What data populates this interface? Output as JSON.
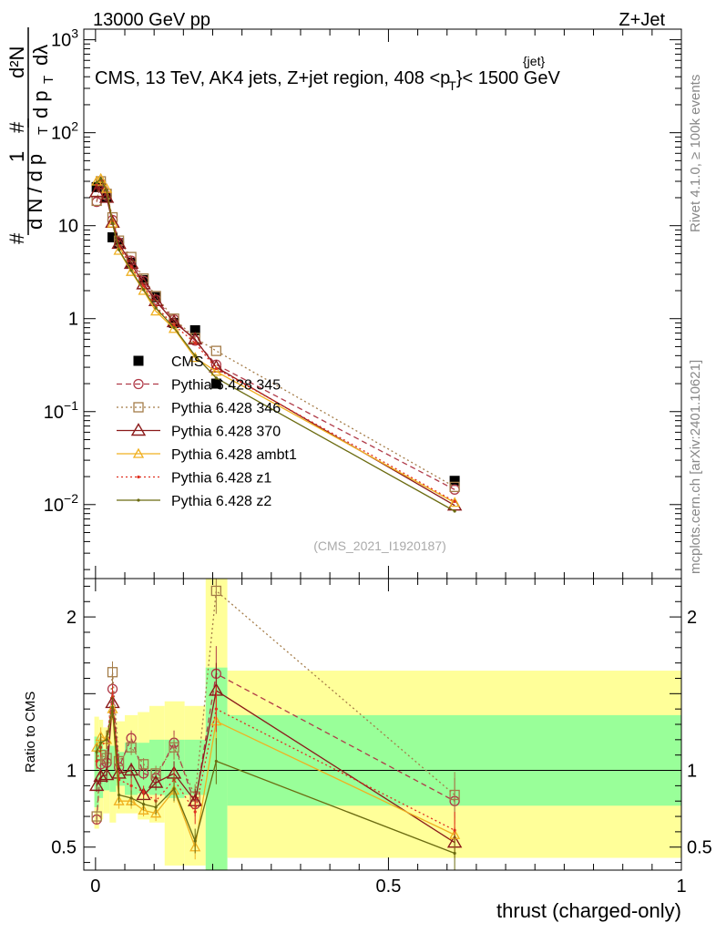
{
  "header": {
    "left": "13000 GeV pp",
    "right": "Z+Jet"
  },
  "side_labels": {
    "rivet": "Rivet 4.1.0, ≥ 100k events",
    "source": "mcplots.cern.ch [arXiv:2401.10621]"
  },
  "watermark": "(CMS_2021_I1920187)",
  "chart_data": [
    {
      "type": "line",
      "panel": "main",
      "title": "CMS, 13 TeV, AK4 jets, Z+jet region, 408 <p_T^{jet}< 1500 GeV",
      "title_parts": {
        "prefix": "CMS, 13 TeV, AK4 jets, Z+jet region, 408 <p",
        "sup": "{jet}",
        "sub": "T",
        "suffix": "}< 1500 GeV"
      },
      "ylabel": "1/dN/dp_T d²N/dp_T dλ",
      "ylabel_parts": {
        "one": "1",
        "hash": "#",
        "dN": "d N / d p",
        "sub": "T",
        "dtwoN": "d²N",
        "dpt": "d p",
        "dlambda": "dλ"
      },
      "yscale": "log",
      "ylim": [
        0.0016,
        1300
      ],
      "xlim": [
        -0.02,
        1.0
      ],
      "y_ticks": [
        {
          "value": 0.01,
          "base": "10",
          "exp": "−2"
        },
        {
          "value": 0.1,
          "base": "10",
          "exp": "−1"
        },
        {
          "value": 1,
          "label": "1"
        },
        {
          "value": 10,
          "label": "10"
        },
        {
          "value": 100,
          "base": "10",
          "exp": "2"
        },
        {
          "value": 1000,
          "base": "10",
          "exp": "3"
        }
      ],
      "legend_position": "center-left",
      "x": [
        0.002,
        0.009,
        0.019,
        0.029,
        0.04,
        0.061,
        0.082,
        0.103,
        0.134,
        0.17,
        0.206,
        0.613
      ],
      "series": [
        {
          "name": "CMS",
          "marker": "square",
          "color": "#000000",
          "style": "none",
          "values": [
            26,
            27,
            20,
            7.5,
            6.5,
            4.0,
            2.6,
            1.7,
            0.9,
            0.75,
            0.2,
            0.018
          ]
        },
        {
          "name": "Pythia 6.428 345",
          "marker": "circle",
          "color": "#b03a48",
          "style": "dash",
          "values": [
            18,
            28,
            21,
            11.5,
            6.6,
            4.2,
            2.55,
            1.6,
            0.98,
            0.58,
            0.32,
            0.0145
          ]
        },
        {
          "name": "Pythia 6.428 346",
          "marker": "square-open",
          "color": "#a47c48",
          "style": "dot",
          "values": [
            18.5,
            30,
            22,
            12.3,
            6.9,
            4.6,
            2.7,
            1.75,
            1.0,
            0.62,
            0.45,
            0.0155
          ]
        },
        {
          "name": "Pythia 6.428 370",
          "marker": "triangle",
          "color": "#8b1a1a",
          "style": "solid",
          "values": [
            23,
            28,
            20,
            10.8,
            6.4,
            3.9,
            2.35,
            1.55,
            0.92,
            0.6,
            0.3,
            0.0098
          ]
        },
        {
          "name": "Pythia 6.428 ambt1",
          "marker": "triangle-small",
          "color": "#f0b020",
          "style": "solid",
          "values": [
            30,
            32,
            25,
            10.6,
            5.4,
            3.2,
            2.0,
            1.2,
            0.78,
            0.38,
            0.27,
            0.0105
          ]
        },
        {
          "name": "Pythia 6.428 z1",
          "marker": "dot",
          "color": "#e03020",
          "style": "dot",
          "values": [
            28,
            31,
            24,
            11.2,
            6.0,
            3.6,
            2.25,
            1.35,
            0.85,
            0.55,
            0.29,
            0.0108
          ]
        },
        {
          "name": "Pythia 6.428 z2",
          "marker": "dot",
          "color": "#6b6b10",
          "style": "solid",
          "values": [
            29,
            32,
            24,
            10.6,
            5.5,
            3.3,
            2.05,
            1.3,
            0.8,
            0.4,
            0.23,
            0.0085
          ]
        }
      ]
    },
    {
      "type": "line",
      "panel": "ratio",
      "ylabel": "Ratio to CMS",
      "xlabel": "thrust (charged-only)",
      "ylim": [
        0.35,
        2.25
      ],
      "xlim": [
        -0.02,
        1.0
      ],
      "y_ticks": [
        {
          "value": 0.5,
          "label": "0.5"
        },
        {
          "value": 1,
          "label": "1"
        },
        {
          "value": 2,
          "label": "2"
        }
      ],
      "x_ticks": [
        {
          "value": 0,
          "label": "0"
        },
        {
          "value": 0.5,
          "label": "0.5"
        },
        {
          "value": 1,
          "label": "1"
        }
      ],
      "bands": [
        {
          "x0": -0.002,
          "x1": 0.006,
          "green": [
            0.76,
            1.22
          ],
          "yellow": [
            0.62,
            1.35
          ]
        },
        {
          "x0": 0.006,
          "x1": 0.013,
          "green": [
            0.82,
            1.2
          ],
          "yellow": [
            0.68,
            1.33
          ]
        },
        {
          "x0": 0.013,
          "x1": 0.024,
          "green": [
            0.87,
            1.14
          ],
          "yellow": [
            0.72,
            1.28
          ]
        },
        {
          "x0": 0.024,
          "x1": 0.035,
          "green": [
            0.86,
            1.16
          ],
          "yellow": [
            0.66,
            1.36
          ]
        },
        {
          "x0": 0.035,
          "x1": 0.05,
          "green": [
            0.9,
            1.12
          ],
          "yellow": [
            0.72,
            1.32
          ]
        },
        {
          "x0": 0.05,
          "x1": 0.072,
          "green": [
            0.84,
            1.18
          ],
          "yellow": [
            0.72,
            1.36
          ]
        },
        {
          "x0": 0.072,
          "x1": 0.092,
          "green": [
            0.85,
            1.18
          ],
          "yellow": [
            0.68,
            1.38
          ]
        },
        {
          "x0": 0.092,
          "x1": 0.118,
          "green": [
            0.84,
            1.2
          ],
          "yellow": [
            0.66,
            1.42
          ]
        },
        {
          "x0": 0.118,
          "x1": 0.152,
          "green": [
            0.82,
            1.2
          ],
          "yellow": [
            0.38,
            1.45
          ]
        },
        {
          "x0": 0.152,
          "x1": 0.188,
          "green": [
            0.84,
            1.2
          ],
          "yellow": [
            0.38,
            1.42
          ]
        },
        {
          "x0": 0.188,
          "x1": 0.225,
          "green": [
            0.35,
            1.67
          ],
          "yellow": [
            0.35,
            2.25
          ]
        },
        {
          "x0": 0.225,
          "x1": 1.0,
          "green": [
            0.77,
            1.36
          ],
          "yellow": [
            0.43,
            1.65
          ]
        }
      ],
      "x": [
        0.002,
        0.009,
        0.019,
        0.029,
        0.04,
        0.061,
        0.082,
        0.103,
        0.134,
        0.17,
        0.206,
        0.613
      ],
      "series": [
        {
          "name": "Pythia 6.428 345",
          "marker": "circle",
          "color": "#b03a48",
          "style": "dash",
          "values": [
            0.68,
            1.04,
            1.05,
            1.53,
            1.02,
            1.21,
            0.98,
            0.95,
            1.18,
            0.78,
            1.63,
            0.8
          ],
          "errors": [
            0.03,
            0.05,
            0.05,
            0.07,
            0.05,
            0.05,
            0.04,
            0.05,
            0.08,
            0.08,
            0.18,
            0.15
          ]
        },
        {
          "name": "Pythia 6.428 346",
          "marker": "square-open",
          "color": "#a47c48",
          "style": "dot",
          "values": [
            0.7,
            1.1,
            1.08,
            1.64,
            1.06,
            1.15,
            1.04,
            0.98,
            1.15,
            0.83,
            2.17,
            0.84
          ],
          "errors": [
            0.03,
            0.05,
            0.05,
            0.07,
            0.05,
            0.05,
            0.04,
            0.05,
            0.08,
            0.08,
            0.15,
            0.15
          ]
        },
        {
          "name": "Pythia 6.428 370",
          "marker": "triangle",
          "color": "#8b1a1a",
          "style": "solid",
          "values": [
            0.9,
            0.96,
            0.97,
            1.44,
            0.98,
            1.0,
            0.84,
            0.92,
            0.98,
            0.8,
            1.52,
            0.53
          ],
          "errors": [
            0.04,
            0.05,
            0.05,
            0.07,
            0.05,
            0.05,
            0.04,
            0.05,
            0.08,
            0.08,
            0.18,
            0.1
          ]
        },
        {
          "name": "Pythia 6.428 ambt1",
          "marker": "triangle-small",
          "color": "#f0b020",
          "style": "solid",
          "values": [
            1.15,
            1.22,
            1.2,
            1.4,
            0.8,
            0.8,
            0.74,
            0.72,
            0.87,
            0.5,
            1.32,
            0.58
          ],
          "errors": [
            0.05,
            0.06,
            0.06,
            0.07,
            0.05,
            0.05,
            0.04,
            0.05,
            0.08,
            0.08,
            0.15,
            0.12
          ]
        },
        {
          "name": "Pythia 6.428 z1",
          "marker": "dot",
          "color": "#e03020",
          "style": "dot",
          "values": [
            1.06,
            1.15,
            1.2,
            1.48,
            0.94,
            0.9,
            0.86,
            0.8,
            0.94,
            0.73,
            1.4,
            0.61
          ],
          "errors": [
            0.05,
            0.06,
            0.06,
            0.07,
            0.05,
            0.05,
            0.04,
            0.05,
            0.08,
            0.08,
            0.15,
            0.12
          ]
        },
        {
          "name": "Pythia 6.428 z2",
          "marker": "dot",
          "color": "#6b6b10",
          "style": "solid",
          "values": [
            1.12,
            1.18,
            1.2,
            1.41,
            0.84,
            0.82,
            0.78,
            0.76,
            0.88,
            0.54,
            1.06,
            0.46
          ],
          "errors": [
            0.05,
            0.06,
            0.06,
            0.07,
            0.05,
            0.05,
            0.04,
            0.05,
            0.08,
            0.08,
            0.15,
            0.12
          ]
        }
      ]
    }
  ]
}
